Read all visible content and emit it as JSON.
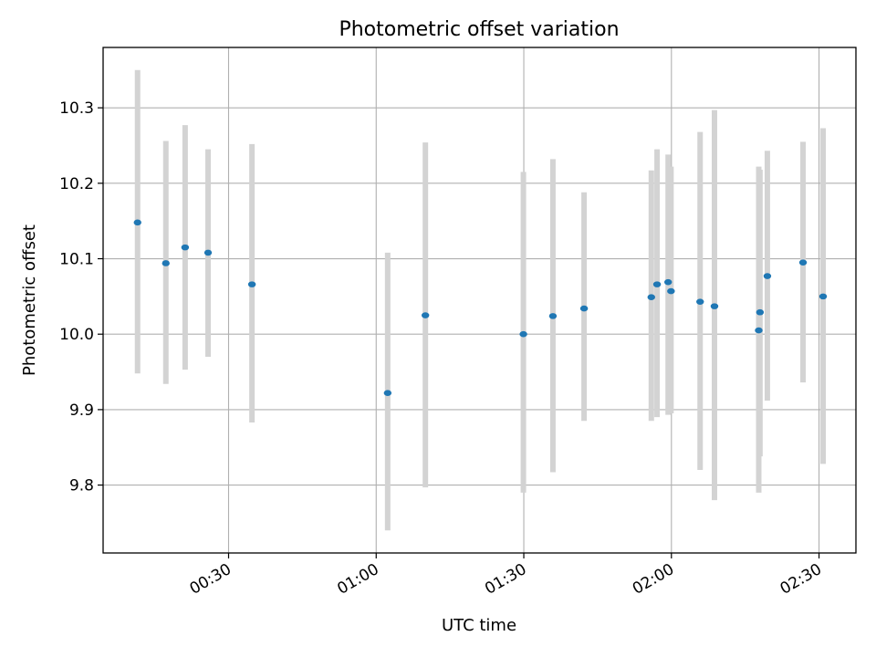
{
  "chart_data": {
    "type": "scatter",
    "title": "Photometric offset variation",
    "xlabel": "UTC time",
    "ylabel": "Photometric offset",
    "x_ticks": [
      "00:30",
      "01:00",
      "01:30",
      "02:00",
      "02:30"
    ],
    "y_ticks": [
      "9.8",
      "9.9",
      "10.0",
      "10.1",
      "10.2",
      "10.3"
    ],
    "xlim": [
      "00:04:30",
      "02:37:30"
    ],
    "ylim": [
      9.71,
      10.38
    ],
    "grid": true,
    "colors": {
      "point": "#1f77b4",
      "errorbar": "#d3d3d3",
      "grid": "#b0b0b0"
    },
    "series": [
      {
        "points": [
          {
            "x": "00:11:30",
            "y": 10.148,
            "ylo": 9.948,
            "yhi": 10.35
          },
          {
            "x": "00:17:15",
            "y": 10.094,
            "ylo": 9.934,
            "yhi": 10.256
          },
          {
            "x": "00:21:10",
            "y": 10.115,
            "ylo": 9.953,
            "yhi": 10.277
          },
          {
            "x": "00:25:50",
            "y": 10.108,
            "ylo": 9.97,
            "yhi": 10.245
          },
          {
            "x": "00:34:45",
            "y": 10.066,
            "ylo": 9.883,
            "yhi": 10.252
          },
          {
            "x": "01:02:20",
            "y": 9.922,
            "ylo": 9.74,
            "yhi": 10.108
          },
          {
            "x": "01:10:00",
            "y": 10.025,
            "ylo": 9.797,
            "yhi": 10.254
          },
          {
            "x": "01:29:55",
            "y": 10.0,
            "ylo": 9.79,
            "yhi": 10.215
          },
          {
            "x": "01:35:55",
            "y": 10.024,
            "ylo": 9.817,
            "yhi": 10.232
          },
          {
            "x": "01:42:15",
            "y": 10.034,
            "ylo": 9.885,
            "yhi": 10.188
          },
          {
            "x": "01:55:55",
            "y": 10.049,
            "ylo": 9.885,
            "yhi": 10.217
          },
          {
            "x": "01:57:05",
            "y": 10.066,
            "ylo": 9.89,
            "yhi": 10.245
          },
          {
            "x": "01:59:20",
            "y": 10.069,
            "ylo": 9.893,
            "yhi": 10.238
          },
          {
            "x": "01:59:55",
            "y": 10.057,
            "ylo": 9.895,
            "yhi": 10.222
          },
          {
            "x": "02:05:50",
            "y": 10.043,
            "ylo": 9.82,
            "yhi": 10.268
          },
          {
            "x": "02:08:45",
            "y": 10.037,
            "ylo": 9.78,
            "yhi": 10.297
          },
          {
            "x": "02:17:45",
            "y": 10.005,
            "ylo": 9.79,
            "yhi": 10.222
          },
          {
            "x": "02:18:00",
            "y": 10.029,
            "ylo": 9.838,
            "yhi": 10.218
          },
          {
            "x": "02:19:30",
            "y": 10.077,
            "ylo": 9.912,
            "yhi": 10.243
          },
          {
            "x": "02:26:45",
            "y": 10.095,
            "ylo": 9.936,
            "yhi": 10.255
          },
          {
            "x": "02:30:50",
            "y": 10.05,
            "ylo": 9.828,
            "yhi": 10.273
          }
        ]
      }
    ]
  }
}
